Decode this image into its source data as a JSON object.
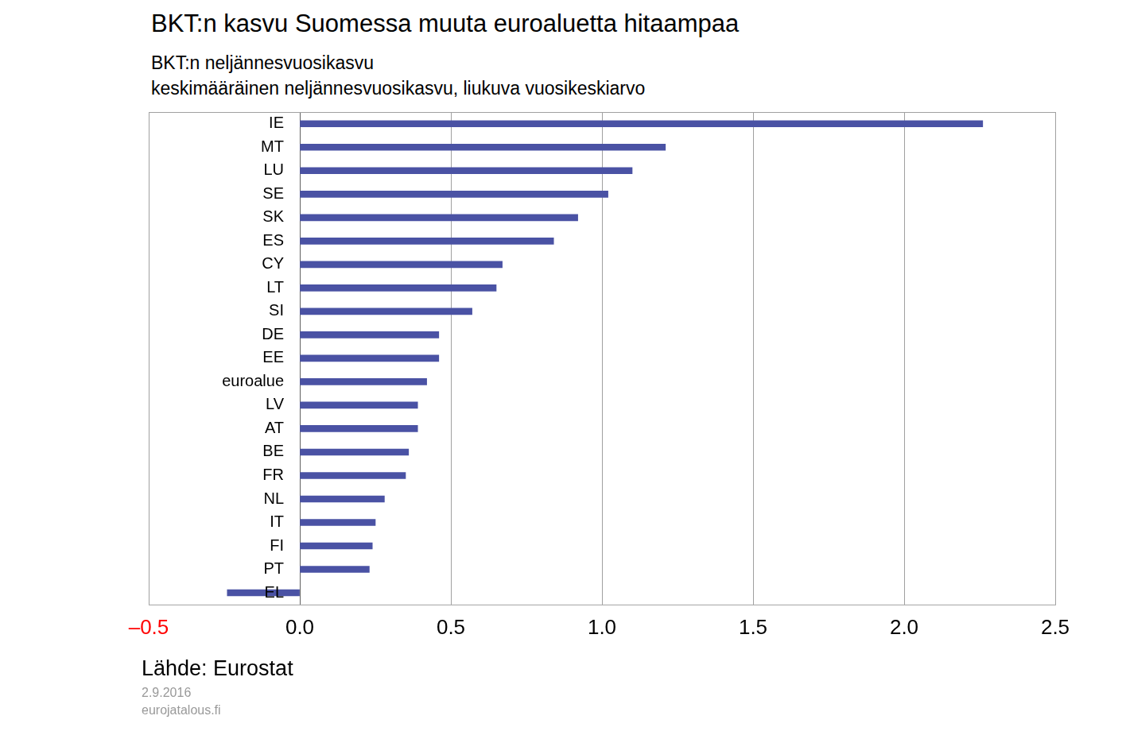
{
  "chart_data": {
    "type": "bar",
    "orientation": "horizontal",
    "title": "BKT:n kasvu Suomessa muuta euroaluetta hitaampaa",
    "subtitle": [
      "BKT:n neljännesvuosikasvu",
      "keskimääräinen neljännesvuosikasvu, liukuva vuosikeskiarvo"
    ],
    "annotations": [
      "Lähde: Eurostat",
      "2.9.2016",
      "eurojatalous.fi"
    ],
    "categories": [
      "IE",
      "MT",
      "LU",
      "SE",
      "SK",
      "ES",
      "CY",
      "LT",
      "SI",
      "DE",
      "EE",
      "euroalue",
      "LV",
      "AT",
      "BE",
      "FR",
      "NL",
      "IT",
      "FI",
      "PT",
      "EL"
    ],
    "values": [
      2.26,
      1.21,
      1.1,
      1.02,
      0.92,
      0.84,
      0.67,
      0.65,
      0.57,
      0.46,
      0.46,
      0.42,
      0.39,
      0.39,
      0.36,
      0.35,
      0.28,
      0.25,
      0.24,
      0.23,
      -0.24
    ],
    "color": "#4a52a4",
    "xlim": [
      -0.5,
      2.5
    ],
    "xticks": [
      {
        "value": -0.5,
        "label": "–0.5"
      },
      {
        "value": 0,
        "label": "0.0"
      },
      {
        "value": 0.5,
        "label": "0.5"
      },
      {
        "value": 1,
        "label": "1.0"
      },
      {
        "value": 1.5,
        "label": "1.5"
      },
      {
        "value": 2,
        "label": "2.0"
      },
      {
        "value": 2.5,
        "label": "2.5"
      }
    ],
    "grid": true
  }
}
